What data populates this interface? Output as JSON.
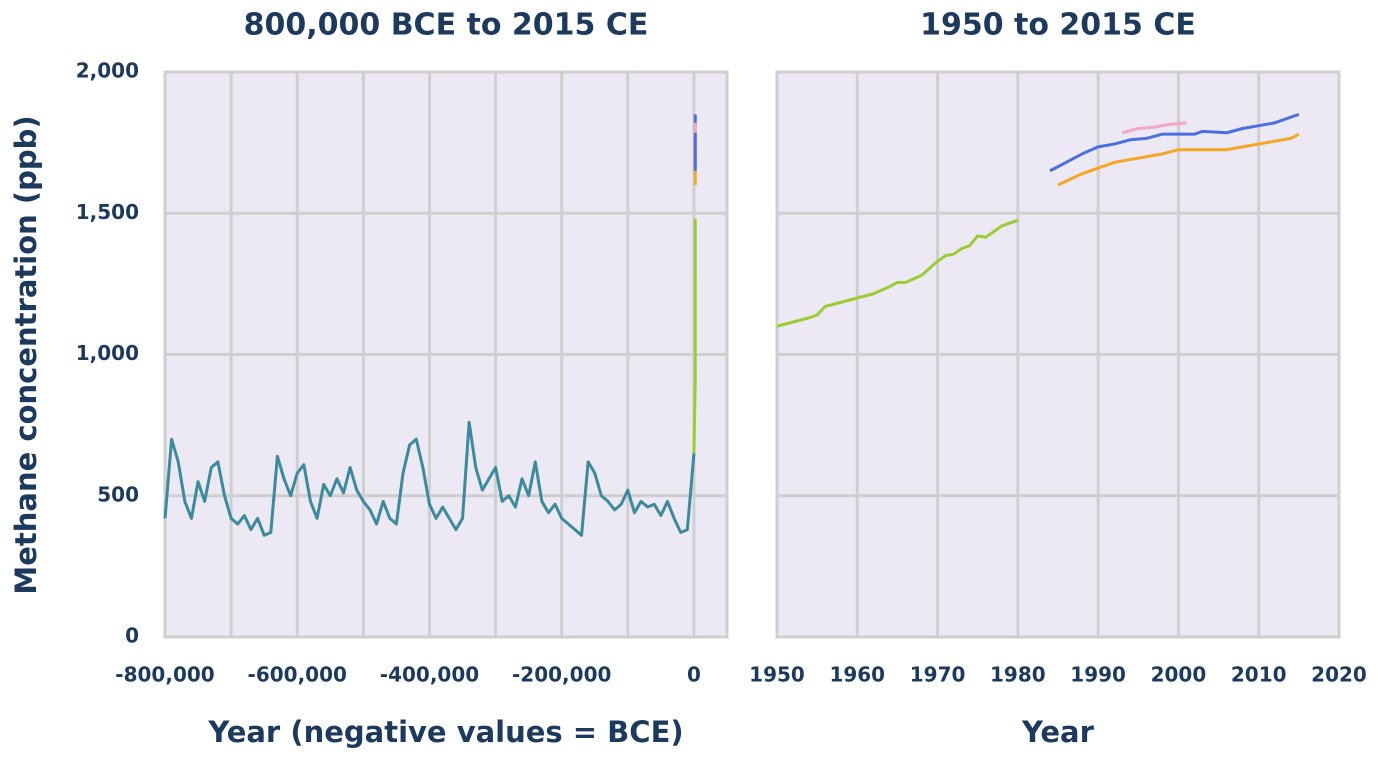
{
  "chart_data": [
    {
      "type": "line",
      "title": "800,000 BCE to 2015 CE",
      "x_label": "Year (negative values = BCE)",
      "y_label": "Methane concentration (ppb)",
      "xlim": [
        -800000,
        50000
      ],
      "ylim": [
        0,
        2000
      ],
      "xticks": [
        {
          "value": -800000,
          "label": "-800,000"
        },
        {
          "value": -600000,
          "label": "-600,000"
        },
        {
          "value": -400000,
          "label": "-400,000"
        },
        {
          "value": -200000,
          "label": "-200,000"
        },
        0
      ],
      "xgrid_lines": [
        -700000,
        -600000,
        -500000,
        -400000,
        -300000,
        -200000,
        -100000,
        0
      ],
      "yticks": [
        0,
        500,
        {
          "value": 1000,
          "label": "1,000"
        },
        {
          "value": 1500,
          "label": "1,500"
        },
        {
          "value": 2000,
          "label": "2,000"
        }
      ],
      "show_ytick_labels": true,
      "grid": true,
      "series": [
        {
          "color": "#3b8a9e",
          "x": [
            -800000,
            -790000,
            -780000,
            -770000,
            -760000,
            -750000,
            -740000,
            -730000,
            -720000,
            -710000,
            -700000,
            -690000,
            -680000,
            -670000,
            -660000,
            -650000,
            -640000,
            -630000,
            -620000,
            -610000,
            -600000,
            -590000,
            -580000,
            -570000,
            -560000,
            -550000,
            -540000,
            -530000,
            -520000,
            -510000,
            -500000,
            -490000,
            -480000,
            -470000,
            -460000,
            -450000,
            -440000,
            -430000,
            -420000,
            -410000,
            -400000,
            -390000,
            -380000,
            -370000,
            -360000,
            -350000,
            -340000,
            -330000,
            -320000,
            -310000,
            -300000,
            -290000,
            -280000,
            -270000,
            -260000,
            -250000,
            -240000,
            -230000,
            -220000,
            -210000,
            -200000,
            -190000,
            -180000,
            -170000,
            -160000,
            -150000,
            -140000,
            -130000,
            -120000,
            -110000,
            -100000,
            -90000,
            -80000,
            -70000,
            -60000,
            -50000,
            -40000,
            -30000,
            -20000,
            -10000,
            0
          ],
          "values": [
            420,
            700,
            620,
            480,
            420,
            550,
            480,
            600,
            620,
            500,
            420,
            400,
            430,
            380,
            420,
            360,
            370,
            640,
            560,
            500,
            580,
            610,
            480,
            420,
            540,
            500,
            560,
            510,
            600,
            520,
            480,
            450,
            400,
            480,
            420,
            400,
            580,
            680,
            700,
            600,
            470,
            420,
            460,
            420,
            380,
            420,
            760,
            600,
            520,
            560,
            600,
            480,
            500,
            460,
            560,
            500,
            620,
            480,
            440,
            470,
            420,
            400,
            380,
            360,
            620,
            580,
            500,
            480,
            450,
            470,
            520,
            440,
            480,
            460,
            470,
            430,
            480,
            420,
            370,
            380,
            650
          ]
        },
        {
          "color": "#9acd32",
          "x": [
            0,
            1900,
            1950,
            1980
          ],
          "values": [
            650,
            900,
            1100,
            1480
          ]
        },
        {
          "color": "#f5a623",
          "x": [
            1985,
            2015
          ],
          "values": [
            1600,
            1780
          ]
        },
        {
          "color": "#4a6fe3",
          "x": [
            1984,
            2015
          ],
          "values": [
            1650,
            1850
          ]
        },
        {
          "color": "#f4a6c8",
          "x": [
            1993,
            2001
          ],
          "values": [
            1785,
            1820
          ]
        }
      ]
    },
    {
      "type": "line",
      "title": "1950 to 2015 CE",
      "x_label": "Year",
      "xlim": [
        1950,
        2020
      ],
      "ylim": [
        0,
        2000
      ],
      "xticks": [
        1950,
        1960,
        1970,
        1980,
        1990,
        2000,
        2010,
        2020
      ],
      "yticks": [
        0,
        500,
        1000,
        1500,
        2000
      ],
      "show_ytick_labels": false,
      "grid": true,
      "series": [
        {
          "color": "#9acd32",
          "x": [
            1950,
            1952,
            1954,
            1955,
            1956,
            1958,
            1960,
            1962,
            1964,
            1965,
            1966,
            1968,
            1970,
            1971,
            1972,
            1973,
            1974,
            1975,
            1976,
            1978,
            1980
          ],
          "values": [
            1100,
            1115,
            1130,
            1140,
            1170,
            1185,
            1200,
            1215,
            1240,
            1255,
            1255,
            1280,
            1330,
            1350,
            1355,
            1375,
            1385,
            1420,
            1415,
            1455,
            1475
          ]
        },
        {
          "color": "#4a6fe3",
          "x": [
            1984,
            1986,
            1988,
            1990,
            1992,
            1994,
            1996,
            1998,
            2000,
            2002,
            2003,
            2006,
            2008,
            2010,
            2012,
            2015
          ],
          "values": [
            1650,
            1680,
            1710,
            1735,
            1745,
            1760,
            1765,
            1780,
            1780,
            1780,
            1790,
            1785,
            1800,
            1810,
            1820,
            1850
          ]
        },
        {
          "color": "#f5a623",
          "x": [
            1985,
            1988,
            1990,
            1992,
            1994,
            1996,
            1998,
            2000,
            2004,
            2006,
            2008,
            2010,
            2012,
            2014,
            2015
          ],
          "values": [
            1600,
            1640,
            1660,
            1680,
            1690,
            1700,
            1710,
            1725,
            1725,
            1725,
            1735,
            1745,
            1755,
            1765,
            1780
          ]
        },
        {
          "color": "#f4a6c8",
          "x": [
            1993,
            1995,
            1997,
            1999,
            2001
          ],
          "values": [
            1785,
            1800,
            1805,
            1815,
            1820
          ]
        }
      ]
    }
  ]
}
